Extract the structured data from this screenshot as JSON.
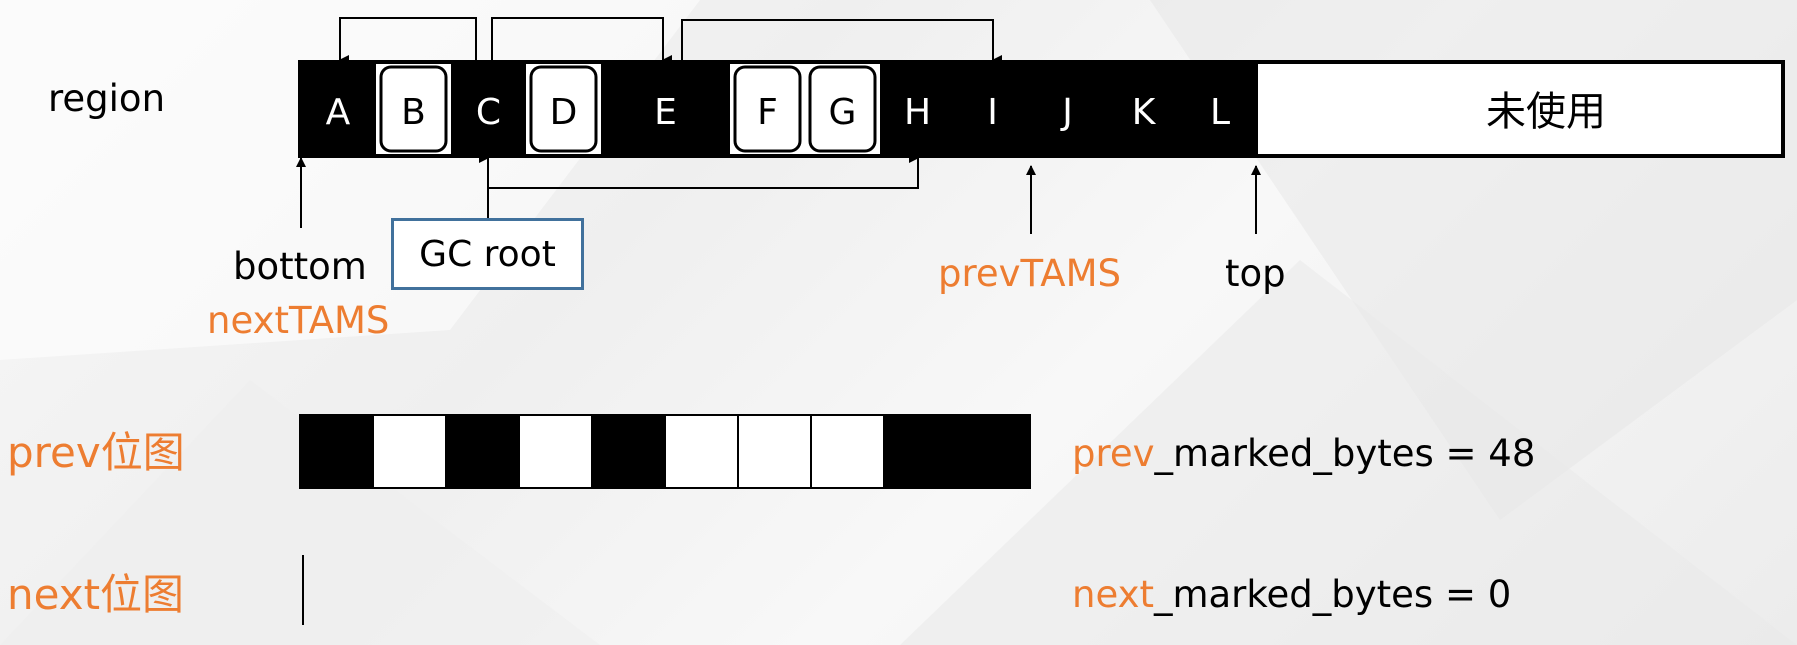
{
  "labels": {
    "region": "region",
    "bottom": "bottom",
    "nextTAMS": "nextTAMS",
    "prevTAMS": "prevTAMS",
    "top": "top",
    "gc_root": "GC root",
    "prev_bitmap": "prev位图",
    "next_bitmap": "next位图",
    "prev_prefix": "prev",
    "prev_suffix": "_marked_bytes = 48",
    "next_prefix": "next",
    "next_suffix": "_marked_bytes = 0"
  },
  "region": {
    "objects": [
      {
        "id": "A",
        "filled": true
      },
      {
        "id": "B",
        "filled": false
      },
      {
        "id": "C",
        "filled": true
      },
      {
        "id": "D",
        "filled": false
      },
      {
        "id": "E",
        "filled": true
      },
      {
        "id": "F",
        "filled": false
      },
      {
        "id": "G",
        "filled": false
      },
      {
        "id": "H",
        "filled": true
      },
      {
        "id": "I",
        "filled": true
      },
      {
        "id": "J",
        "filled": true
      },
      {
        "id": "K",
        "filled": true
      },
      {
        "id": "L",
        "filled": true
      }
    ],
    "unused_label": "未使用"
  },
  "references": [
    {
      "from": "C",
      "to": "A"
    },
    {
      "from": "C",
      "to": "E"
    },
    {
      "from": "E",
      "to": "I"
    },
    {
      "from": "C",
      "to": "H"
    }
  ],
  "prev_bitmap": [
    "black",
    "white",
    "black",
    "white",
    "black",
    "white",
    "white",
    "white",
    "black",
    "black"
  ],
  "colors": {
    "orange": "#ED7D31",
    "gc_root_border": "#41719C"
  }
}
